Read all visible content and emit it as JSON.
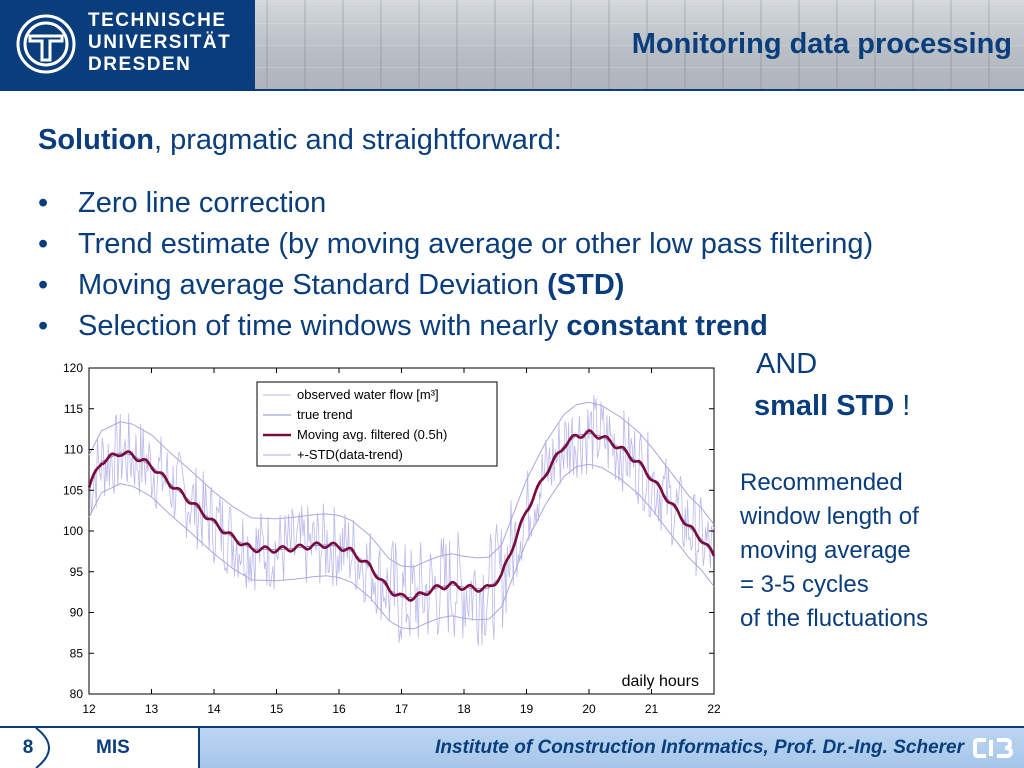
{
  "header": {
    "logo_lines": [
      "TECHNISCHE",
      "UNIVERSITÄT",
      "DRESDEN"
    ],
    "title": "Monitoring data processing"
  },
  "intro": {
    "bold": "Solution",
    "rest": ", pragmatic and straightforward:"
  },
  "bullets": [
    {
      "text": "Zero line correction",
      "bold": ""
    },
    {
      "text": "Trend estimate (by moving average or other low pass filtering)",
      "bold": ""
    },
    {
      "text": "Moving average Standard Deviation ",
      "bold": "(STD)"
    },
    {
      "text": "Selection of time windows with nearly ",
      "bold": "constant trend"
    }
  ],
  "bullet_symbol": "•",
  "and_text": "AND",
  "std_line": {
    "bold": "small STD",
    "rest": " !"
  },
  "recommend_lines": [
    "Recommended",
    "window length of",
    "moving average",
    "= 3-5 cycles",
    "of the fluctuations"
  ],
  "chart_data": {
    "type": "line",
    "xlabel": "daily hours",
    "xlim": [
      12,
      22
    ],
    "ylim": [
      80,
      120
    ],
    "x_ticks": [
      12,
      13,
      14,
      15,
      16,
      17,
      18,
      19,
      20,
      21,
      22
    ],
    "y_ticks": [
      80,
      85,
      90,
      95,
      100,
      105,
      110,
      115,
      120
    ],
    "legend_position": "top-center",
    "std_offset": 3.8,
    "series": [
      {
        "name": "observed water flow [m³]",
        "color": "#b9b9ec",
        "style": "noisy"
      },
      {
        "name": "true trend",
        "color": "#8c8cd9",
        "style": "line"
      },
      {
        "name": "Moving avg. filtered (0.5h)",
        "color": "#7a0a3a",
        "style": "thick"
      },
      {
        "name": "+-STD(data-trend)",
        "color": "#a8a8e0",
        "style": "thin"
      }
    ],
    "trend": {
      "x": [
        12,
        12.2,
        12.5,
        12.7,
        13,
        13.3,
        13.6,
        14,
        14.3,
        14.6,
        15,
        15.3,
        15.6,
        15.8,
        16,
        16.2,
        16.5,
        16.8,
        17,
        17.2,
        17.4,
        17.6,
        17.8,
        18,
        18.2,
        18.4,
        18.6,
        18.8,
        19,
        19.3,
        19.6,
        19.8,
        20,
        20.2,
        20.5,
        20.8,
        21,
        21.3,
        21.6,
        21.8,
        22
      ],
      "y": [
        105.5,
        108.5,
        109.6,
        109.3,
        108,
        105.8,
        103.8,
        101,
        99.2,
        97.8,
        97.7,
        97.9,
        98.2,
        98.3,
        98.1,
        97.5,
        95.6,
        92.8,
        91.9,
        91.8,
        92.5,
        93.1,
        93.4,
        93.1,
        92.9,
        93,
        94.5,
        98.5,
        102.5,
        107,
        110.5,
        111.7,
        112,
        111.6,
        110.2,
        108.3,
        106.5,
        103.5,
        100.5,
        99,
        97
      ]
    }
  },
  "footer": {
    "page_number": "8",
    "course": "MIS",
    "institute": "Institute of Construction Informatics, Prof. Dr.-Ing. Scherer"
  },
  "colors": {
    "brand": "#0a3d7c",
    "footer_band": "#b3cfee"
  }
}
